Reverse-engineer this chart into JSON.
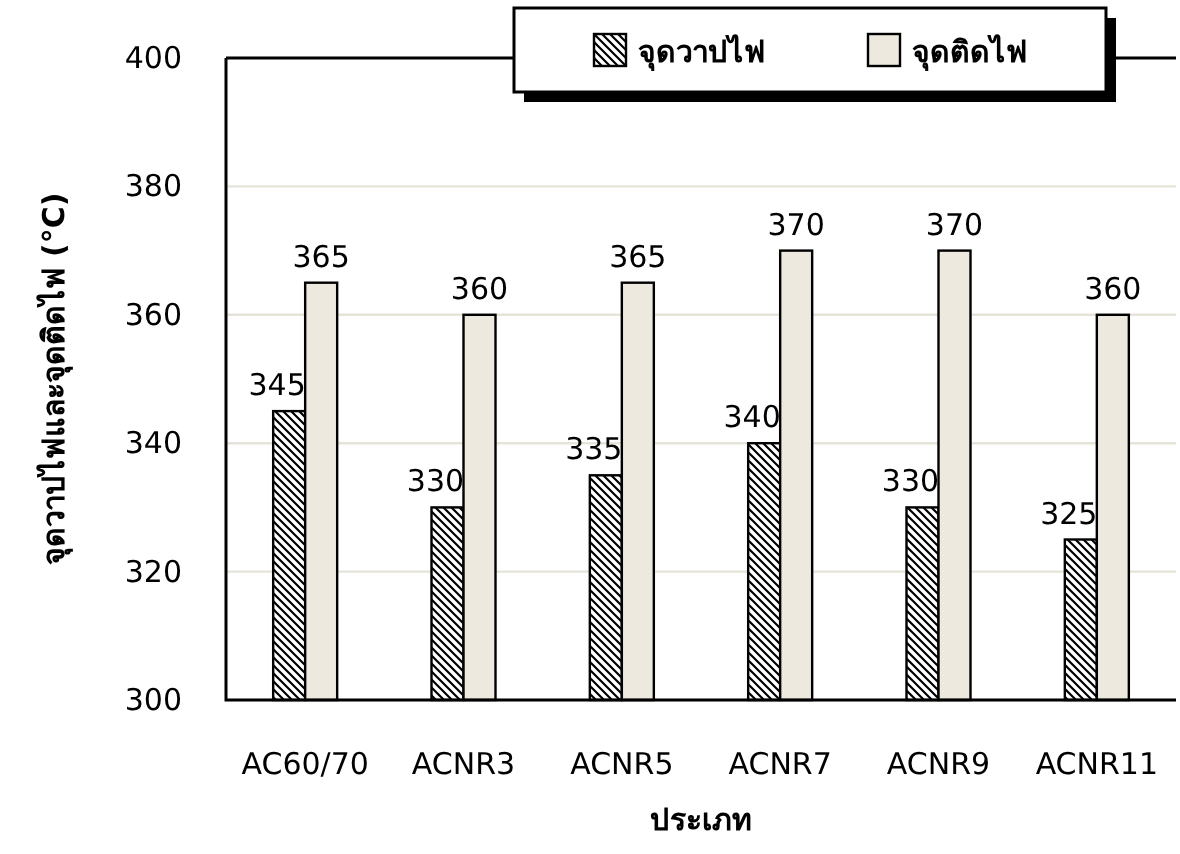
{
  "chart_data": {
    "type": "bar",
    "xlabel": "ประเภท",
    "ylabel": "จุดวาปไฟและจุดติดไฟ (°C)",
    "categories": [
      "AC60/70",
      "ACNR3",
      "ACNR5",
      "ACNR7",
      "ACNR9",
      "ACNR11"
    ],
    "series": [
      {
        "name": "จุดวาปไฟ",
        "color": "#000000",
        "values": [
          345,
          330,
          335,
          340,
          330,
          325
        ]
      },
      {
        "name": "จุดติดไฟ",
        "color": "#ede9df",
        "values": [
          365,
          360,
          365,
          370,
          370,
          360
        ]
      }
    ],
    "ylim": [
      300,
      400
    ],
    "yticks": [
      300,
      320,
      340,
      360,
      380,
      400
    ],
    "grid": "y",
    "legend": "top",
    "data_labels": true
  }
}
